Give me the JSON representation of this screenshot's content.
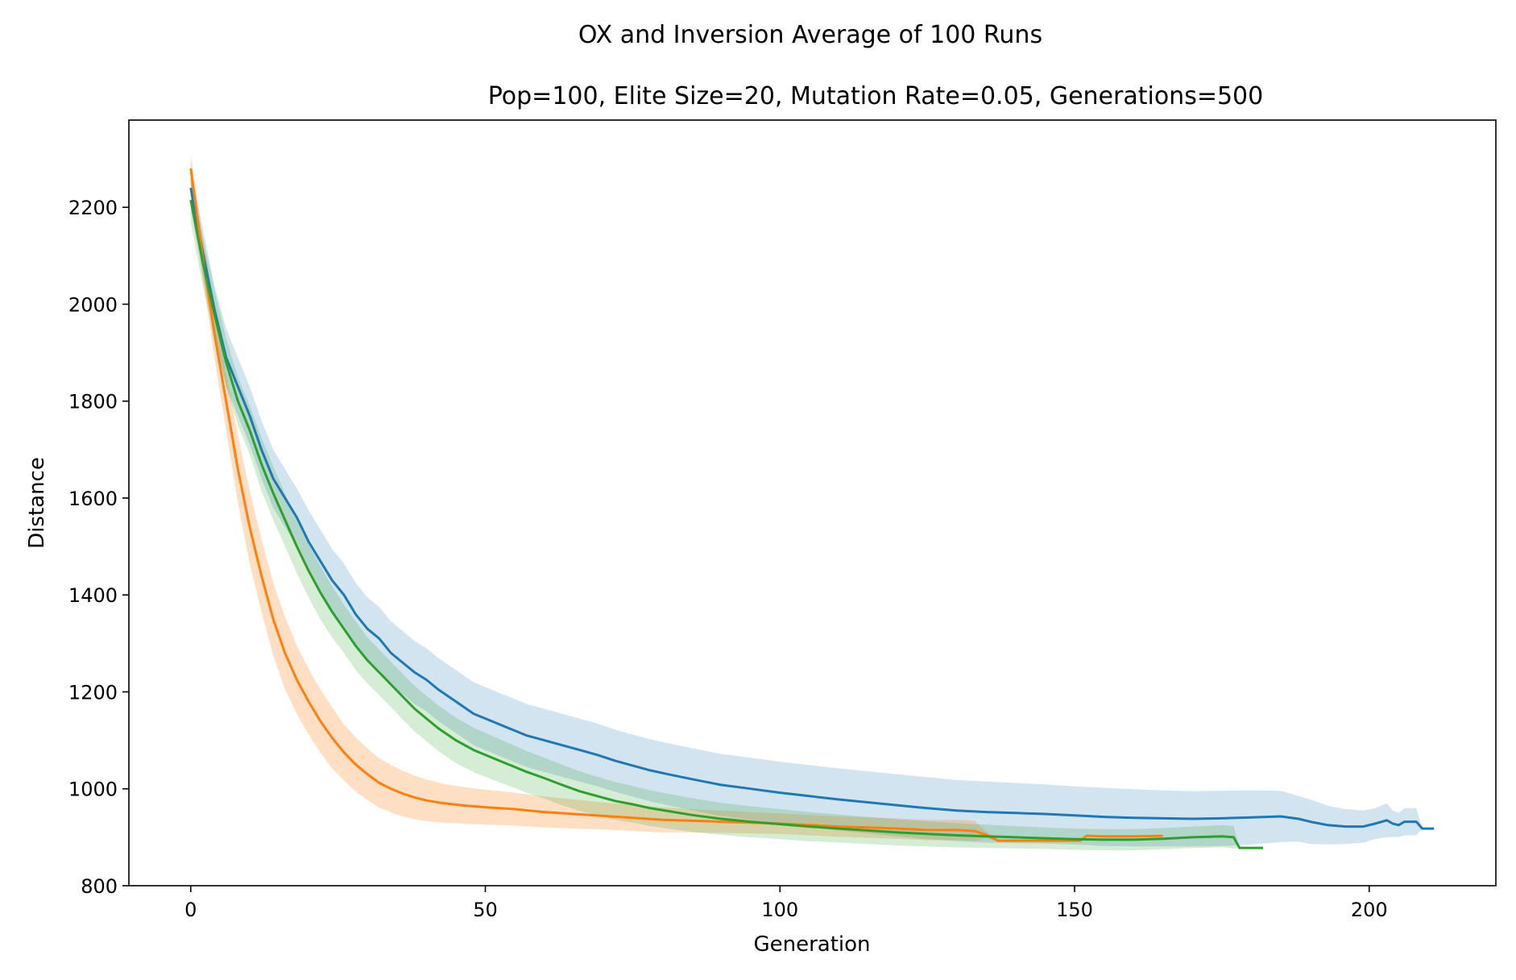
{
  "chart_data": {
    "type": "line",
    "suptitle": "OX and Inversion Average of 100 Runs",
    "title": "Pop=100, Elite Size=20, Mutation Rate=0.05, Generations=500",
    "xlabel": "Generation",
    "ylabel": "Distance",
    "xlim": [
      -10.5,
      221.5
    ],
    "ylim": [
      800,
      2380
    ],
    "xticks": [
      0,
      50,
      100,
      150,
      200
    ],
    "yticks": [
      800,
      1000,
      1200,
      1400,
      1600,
      1800,
      2000,
      2200
    ],
    "grid": false,
    "legend": "none",
    "series": [
      {
        "color": "#1f77b4",
        "band_opacity": 0.2,
        "x": [
          0,
          2,
          4,
          6,
          8,
          10,
          12,
          14,
          16,
          18,
          20,
          22,
          24,
          26,
          28,
          30,
          32,
          34,
          36,
          38,
          40,
          42,
          45,
          48,
          51,
          54,
          57,
          60,
          63,
          66,
          69,
          72,
          75,
          78,
          81,
          85,
          90,
          95,
          100,
          105,
          110,
          115,
          120,
          125,
          130,
          135,
          140,
          145,
          150,
          155,
          160,
          165,
          170,
          175,
          180,
          185,
          188,
          190,
          193,
          196,
          199,
          201,
          203,
          204,
          205,
          206,
          208,
          209,
          211
        ],
        "y": [
          2240,
          2110,
          1990,
          1890,
          1830,
          1770,
          1700,
          1640,
          1600,
          1560,
          1510,
          1470,
          1430,
          1400,
          1360,
          1330,
          1310,
          1280,
          1260,
          1240,
          1225,
          1205,
          1180,
          1155,
          1140,
          1125,
          1110,
          1100,
          1090,
          1080,
          1070,
          1058,
          1048,
          1038,
          1030,
          1020,
          1008,
          1000,
          992,
          985,
          978,
          972,
          966,
          960,
          955,
          952,
          950,
          948,
          945,
          942,
          940,
          939,
          938,
          939,
          941,
          943,
          938,
          932,
          925,
          922,
          922,
          928,
          935,
          928,
          925,
          932,
          932,
          918,
          918
        ],
        "upper": [
          2280,
          2160,
          2040,
          1950,
          1890,
          1830,
          1760,
          1700,
          1660,
          1620,
          1575,
          1535,
          1495,
          1465,
          1425,
          1395,
          1375,
          1345,
          1325,
          1305,
          1290,
          1270,
          1245,
          1220,
          1205,
          1190,
          1175,
          1165,
          1155,
          1145,
          1135,
          1122,
          1112,
          1102,
          1094,
          1084,
          1072,
          1064,
          1056,
          1049,
          1042,
          1036,
          1030,
          1024,
          1018,
          1015,
          1012,
          1009,
          1005,
          1002,
          999,
          997,
          995,
          996,
          997,
          996,
          985,
          978,
          965,
          958,
          955,
          960,
          970,
          955,
          950,
          960,
          960,
          918,
          918
        ],
        "lower": [
          2200,
          2060,
          1940,
          1830,
          1770,
          1710,
          1640,
          1580,
          1540,
          1500,
          1445,
          1405,
          1365,
          1335,
          1295,
          1265,
          1245,
          1215,
          1195,
          1175,
          1160,
          1140,
          1115,
          1090,
          1075,
          1060,
          1045,
          1035,
          1025,
          1015,
          1005,
          994,
          984,
          974,
          966,
          956,
          944,
          936,
          928,
          921,
          914,
          908,
          902,
          896,
          892,
          889,
          888,
          887,
          885,
          882,
          881,
          881,
          881,
          882,
          885,
          890,
          891,
          886,
          885,
          886,
          889,
          896,
          900,
          901,
          900,
          904,
          904,
          918,
          918
        ]
      },
      {
        "color": "#ff7f0e",
        "band_opacity": 0.25,
        "x": [
          0,
          2,
          4,
          6,
          8,
          10,
          12,
          14,
          16,
          18,
          20,
          22,
          24,
          26,
          28,
          30,
          32,
          34,
          36,
          38,
          40,
          43,
          46,
          50,
          55,
          60,
          65,
          70,
          75,
          80,
          85,
          90,
          95,
          100,
          105,
          110,
          115,
          120,
          125,
          130,
          133,
          135,
          137,
          140,
          145,
          150,
          151,
          152,
          155,
          160,
          165
        ],
        "y": [
          2280,
          2100,
          1940,
          1800,
          1660,
          1540,
          1440,
          1350,
          1280,
          1225,
          1180,
          1140,
          1105,
          1075,
          1050,
          1030,
          1012,
          1000,
          990,
          982,
          976,
          970,
          966,
          962,
          958,
          952,
          948,
          944,
          940,
          936,
          934,
          932,
          930,
          928,
          925,
          922,
          920,
          918,
          915,
          915,
          913,
          905,
          893,
          893,
          893,
          893,
          893,
          903,
          902,
          902,
          903
        ],
        "upper": [
          2310,
          2140,
          1990,
          1860,
          1730,
          1615,
          1515,
          1425,
          1355,
          1295,
          1248,
          1205,
          1168,
          1133,
          1106,
          1083,
          1063,
          1049,
          1037,
          1027,
          1019,
          1010,
          1004,
          998,
          992,
          984,
          978,
          972,
          967,
          962,
          958,
          955,
          952,
          949,
          946,
          943,
          941,
          939,
          936,
          936,
          934,
          912,
          895,
          895,
          895,
          895,
          895,
          905,
          904,
          904,
          905
        ],
        "lower": [
          2250,
          2060,
          1890,
          1740,
          1590,
          1465,
          1365,
          1275,
          1205,
          1155,
          1112,
          1075,
          1042,
          1017,
          994,
          977,
          961,
          951,
          943,
          937,
          933,
          930,
          928,
          926,
          924,
          920,
          918,
          916,
          913,
          910,
          910,
          909,
          908,
          907,
          904,
          901,
          899,
          897,
          894,
          894,
          892,
          898,
          891,
          891,
          891,
          891,
          891,
          901,
          900,
          900,
          901
        ]
      },
      {
        "color": "#2ca02c",
        "band_opacity": 0.2,
        "x": [
          0,
          2,
          4,
          6,
          8,
          10,
          12,
          14,
          16,
          18,
          20,
          22,
          24,
          26,
          28,
          30,
          32,
          34,
          36,
          38,
          40,
          42,
          45,
          48,
          51,
          54,
          57,
          60,
          63,
          66,
          69,
          72,
          75,
          78,
          81,
          85,
          90,
          95,
          100,
          105,
          110,
          115,
          120,
          125,
          130,
          135,
          140,
          145,
          150,
          155,
          160,
          165,
          170,
          175,
          177,
          178,
          182
        ],
        "y": [
          2215,
          2090,
          1980,
          1880,
          1800,
          1740,
          1670,
          1610,
          1555,
          1500,
          1450,
          1405,
          1365,
          1330,
          1295,
          1265,
          1240,
          1215,
          1190,
          1165,
          1145,
          1125,
          1100,
          1080,
          1065,
          1050,
          1035,
          1022,
          1008,
          995,
          985,
          975,
          968,
          960,
          954,
          946,
          938,
          932,
          927,
          922,
          918,
          914,
          910,
          907,
          904,
          902,
          900,
          898,
          896,
          895,
          895,
          897,
          900,
          902,
          900,
          878,
          878
        ],
        "upper": [
          2260,
          2140,
          2030,
          1930,
          1850,
          1790,
          1725,
          1665,
          1610,
          1555,
          1505,
          1460,
          1418,
          1380,
          1345,
          1313,
          1287,
          1262,
          1237,
          1212,
          1192,
          1172,
          1147,
          1126,
          1110,
          1094,
          1078,
          1064,
          1050,
          1036,
          1025,
          1014,
          1006,
          997,
          990,
          981,
          971,
          964,
          958,
          952,
          947,
          942,
          937,
          933,
          929,
          926,
          923,
          920,
          918,
          917,
          917,
          919,
          922,
          925,
          923,
          878,
          878
        ],
        "lower": [
          2170,
          2040,
          1930,
          1830,
          1750,
          1690,
          1615,
          1555,
          1500,
          1445,
          1395,
          1350,
          1312,
          1280,
          1245,
          1217,
          1193,
          1168,
          1143,
          1118,
          1098,
          1078,
          1053,
          1034,
          1020,
          1006,
          992,
          980,
          966,
          954,
          945,
          936,
          930,
          923,
          918,
          911,
          905,
          900,
          896,
          892,
          889,
          886,
          883,
          881,
          879,
          878,
          877,
          876,
          874,
          873,
          873,
          875,
          878,
          879,
          877,
          878,
          878
        ]
      }
    ]
  }
}
